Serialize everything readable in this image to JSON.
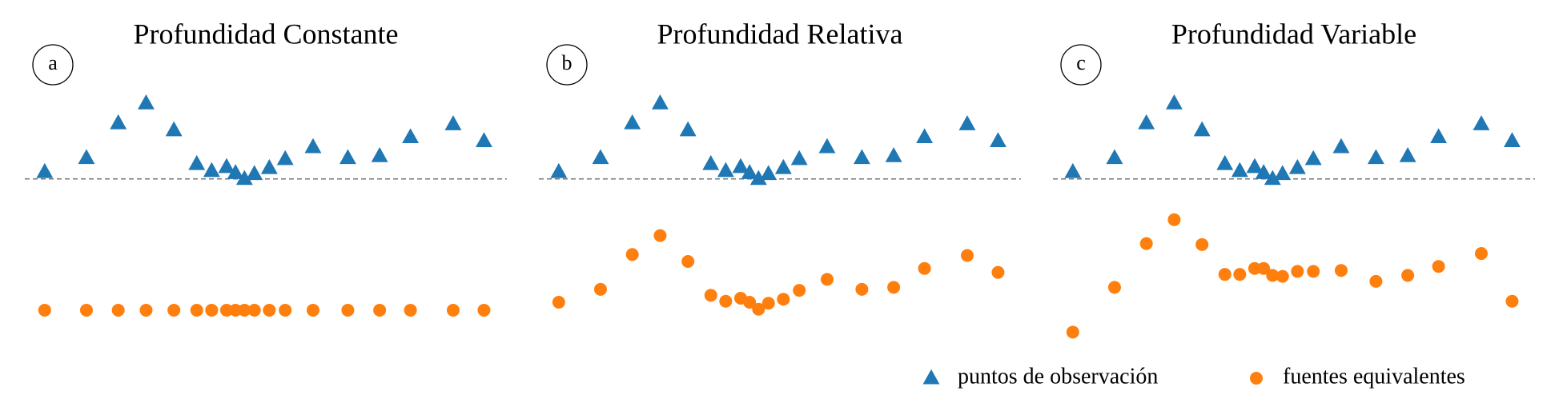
{
  "chart_data": [
    {
      "type": "scatter",
      "title": "Profundidad Constante",
      "label": "a",
      "x": [
        45,
        87,
        119,
        147,
        175,
        198,
        213,
        228,
        237,
        246,
        256,
        271,
        287,
        315,
        350,
        382,
        413,
        456,
        487
      ],
      "xlim": [
        25,
        510
      ],
      "ylim": [
        -165,
        85
      ],
      "hline": 0,
      "legend": false,
      "series": [
        {
          "name": "puntos de observación",
          "color": "#1f77b4",
          "marker": "triangle",
          "values": [
            7,
            21,
            56,
            76,
            49,
            15,
            8,
            12,
            6,
            0,
            5,
            11,
            20,
            32,
            21,
            23,
            42,
            55,
            38
          ]
        },
        {
          "name": "fuentes equivalentes",
          "color": "#ff7f0e",
          "marker": "circle",
          "values": [
            -132,
            -132,
            -132,
            -132,
            -132,
            -132,
            -132,
            -132,
            -132,
            -132,
            -132,
            -132,
            -132,
            -132,
            -132,
            -132,
            -132,
            -132,
            -132
          ]
        }
      ]
    },
    {
      "type": "scatter",
      "title": "Profundidad Relativa",
      "label": "b",
      "x": [
        45,
        87,
        119,
        147,
        175,
        198,
        213,
        228,
        237,
        246,
        256,
        271,
        287,
        315,
        350,
        382,
        413,
        456,
        487
      ],
      "xlim": [
        25,
        510
      ],
      "ylim": [
        -165,
        85
      ],
      "hline": 0,
      "legend": false,
      "series": [
        {
          "name": "puntos de observación",
          "color": "#1f77b4",
          "marker": "triangle",
          "values": [
            7,
            21,
            56,
            76,
            49,
            15,
            8,
            12,
            6,
            0,
            5,
            11,
            20,
            32,
            21,
            23,
            42,
            55,
            38
          ]
        },
        {
          "name": "fuentes equivalentes",
          "color": "#ff7f0e",
          "marker": "circle",
          "values": [
            -124,
            -111,
            -76,
            -57,
            -83,
            -117,
            -123,
            -120,
            -124,
            -131,
            -125,
            -121,
            -112,
            -101,
            -111,
            -109,
            -90,
            -77,
            -94
          ]
        }
      ]
    },
    {
      "type": "scatter",
      "title": "Profundidad Variable",
      "label": "c",
      "x": [
        45,
        87,
        119,
        147,
        175,
        198,
        213,
        228,
        237,
        246,
        256,
        271,
        287,
        315,
        350,
        382,
        413,
        456,
        487
      ],
      "xlim": [
        25,
        510
      ],
      "ylim": [
        -165,
        85
      ],
      "hline": 0,
      "legend": true,
      "series": [
        {
          "name": "puntos de observación",
          "color": "#1f77b4",
          "marker": "triangle",
          "values": [
            7,
            21,
            56,
            76,
            49,
            15,
            8,
            12,
            6,
            0,
            5,
            11,
            20,
            32,
            21,
            23,
            42,
            55,
            38
          ]
        },
        {
          "name": "fuentes equivalentes",
          "color": "#ff7f0e",
          "marker": "circle",
          "values": [
            -154,
            -109,
            -65,
            -41,
            -66,
            -96,
            -96,
            -90,
            -90,
            -97,
            -98,
            -93,
            -93,
            -92,
            -103,
            -97,
            -88,
            -75,
            -123
          ]
        }
      ]
    }
  ]
}
